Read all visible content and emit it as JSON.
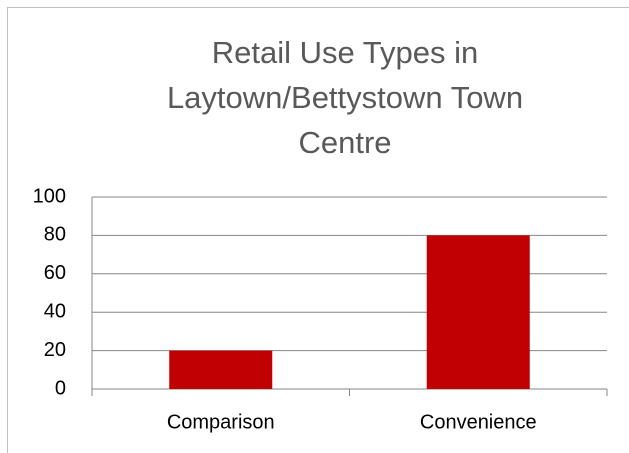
{
  "chart_data": {
    "type": "bar",
    "title": "Retail Use Types in Laytown/Bettystown Town Centre",
    "categories": [
      "Comparison",
      "Convenience"
    ],
    "values": [
      20,
      80
    ],
    "color": "#c00000",
    "ylim": [
      0,
      100
    ],
    "yticks": [
      0,
      20,
      40,
      60,
      80,
      100
    ],
    "grid": true
  }
}
